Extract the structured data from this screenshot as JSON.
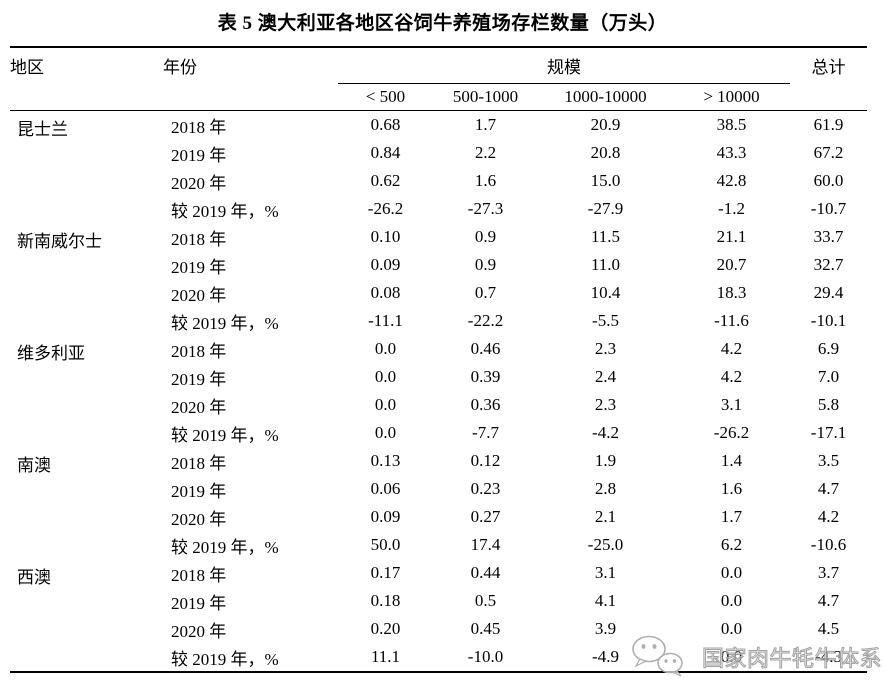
{
  "page": {
    "title": "表 5 澳大利亚各地区谷饲牛养殖场存栏数量（万头）"
  },
  "table": {
    "headers": {
      "region": "地区",
      "year": "年份",
      "scale": "规模",
      "total": "总计"
    },
    "scale_columns": [
      "< 500",
      "500-1000",
      "1000-10000",
      "> 10000"
    ],
    "regions": [
      {
        "name": "昆士兰",
        "rows": [
          {
            "year": "2018 年",
            "values": [
              "0.68",
              "1.7",
              "20.9",
              "38.5",
              "61.9"
            ]
          },
          {
            "year": "2019 年",
            "values": [
              "0.84",
              "2.2",
              "20.8",
              "43.3",
              "67.2"
            ]
          },
          {
            "year": "2020 年",
            "values": [
              "0.62",
              "1.6",
              "15.0",
              "42.8",
              "60.0"
            ]
          },
          {
            "year": "较 2019 年，%",
            "values": [
              "-26.2",
              "-27.3",
              "-27.9",
              "-1.2",
              "-10.7"
            ]
          }
        ]
      },
      {
        "name": "新南威尔士",
        "rows": [
          {
            "year": "2018 年",
            "values": [
              "0.10",
              "0.9",
              "11.5",
              "21.1",
              "33.7"
            ]
          },
          {
            "year": "2019 年",
            "values": [
              "0.09",
              "0.9",
              "11.0",
              "20.7",
              "32.7"
            ]
          },
          {
            "year": "2020 年",
            "values": [
              "0.08",
              "0.7",
              "10.4",
              "18.3",
              "29.4"
            ]
          },
          {
            "year": "较 2019 年，%",
            "values": [
              "-11.1",
              "-22.2",
              "-5.5",
              "-11.6",
              "-10.1"
            ]
          }
        ]
      },
      {
        "name": "维多利亚",
        "rows": [
          {
            "year": "2018 年",
            "values": [
              "0.0",
              "0.46",
              "2.3",
              "4.2",
              "6.9"
            ]
          },
          {
            "year": "2019 年",
            "values": [
              "0.0",
              "0.39",
              "2.4",
              "4.2",
              "7.0"
            ]
          },
          {
            "year": "2020 年",
            "values": [
              "0.0",
              "0.36",
              "2.3",
              "3.1",
              "5.8"
            ]
          },
          {
            "year": "较 2019 年，%",
            "values": [
              "0.0",
              "-7.7",
              "-4.2",
              "-26.2",
              "-17.1"
            ]
          }
        ]
      },
      {
        "name": "南澳",
        "rows": [
          {
            "year": "2018 年",
            "values": [
              "0.13",
              "0.12",
              "1.9",
              "1.4",
              "3.5"
            ]
          },
          {
            "year": "2019 年",
            "values": [
              "0.06",
              "0.23",
              "2.8",
              "1.6",
              "4.7"
            ]
          },
          {
            "year": "2020 年",
            "values": [
              "0.09",
              "0.27",
              "2.1",
              "1.7",
              "4.2"
            ]
          },
          {
            "year": "较 2019 年，%",
            "values": [
              "50.0",
              "17.4",
              "-25.0",
              "6.2",
              "-10.6"
            ]
          }
        ]
      },
      {
        "name": "西澳",
        "rows": [
          {
            "year": "2018 年",
            "values": [
              "0.17",
              "0.44",
              "3.1",
              "0.0",
              "3.7"
            ]
          },
          {
            "year": "2019 年",
            "values": [
              "0.18",
              "0.5",
              "4.1",
              "0.0",
              "4.7"
            ]
          },
          {
            "year": "2020 年",
            "values": [
              "0.20",
              "0.45",
              "3.9",
              "0.0",
              "4.5"
            ]
          },
          {
            "year": "较 2019 年，%",
            "values": [
              "11.1",
              "-10.0",
              "-4.9",
              "0.0",
              "-4.3"
            ]
          }
        ]
      }
    ]
  },
  "watermark": {
    "label": "国家肉牛牦牛体系",
    "icon": "wechat-logo-icon"
  },
  "colors": {
    "text": "#000000",
    "rule": "#000000",
    "watermark_gray": "#a2a2a2",
    "background": "#ffffff"
  }
}
